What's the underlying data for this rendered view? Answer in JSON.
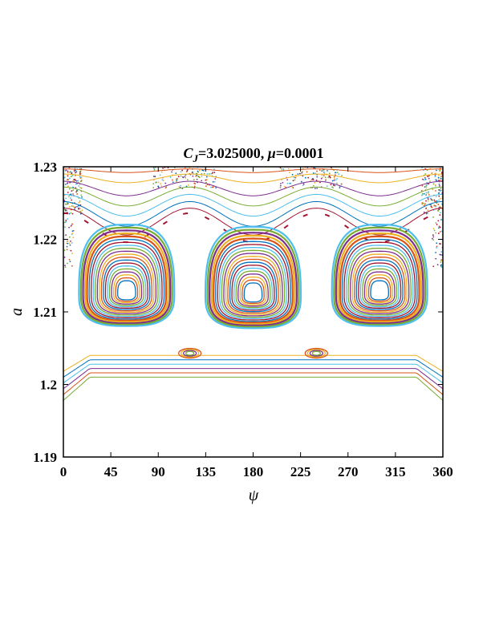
{
  "chart_data": {
    "type": "scatter",
    "title_parts": {
      "var1": "C",
      "sub1": "J",
      "val1": "=3.025000,  ",
      "var2": "μ",
      "val2": "=0.0001"
    },
    "xlabel": "ψ",
    "ylabel": "a",
    "xlim": [
      0,
      360
    ],
    "ylim": [
      1.19,
      1.23
    ],
    "xticks": [
      "0",
      "45",
      "90",
      "135",
      "180",
      "225",
      "270",
      "315",
      "360"
    ],
    "yticks": [
      "1.19",
      "1.2",
      "1.21",
      "1.22",
      "1.23"
    ],
    "grid": false,
    "island_centers": [
      {
        "psi": 60,
        "a": 1.2125
      },
      {
        "psi": 180,
        "a": 1.2122
      },
      {
        "psi": 300,
        "a": 1.2125
      }
    ],
    "colors": [
      "#0072BD",
      "#D95319",
      "#EDB120",
      "#7E2F8E",
      "#77AC30",
      "#4DBEEE",
      "#A2142F"
    ]
  }
}
